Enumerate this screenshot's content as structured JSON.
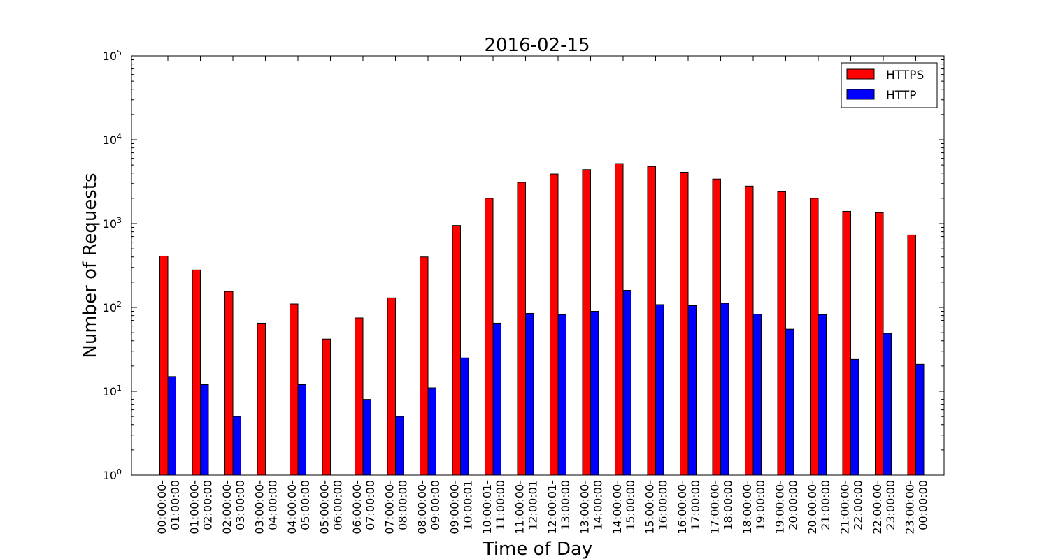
{
  "chart_data": {
    "type": "bar",
    "title": "2016-02-15",
    "xlabel": "Time of Day",
    "ylabel": "Number of Requests",
    "yscale": "log",
    "ylim": [
      1,
      100000
    ],
    "yticks": [
      {
        "value": 1,
        "base": "10",
        "exp": "0"
      },
      {
        "value": 10,
        "base": "10",
        "exp": "1"
      },
      {
        "value": 100,
        "base": "10",
        "exp": "2"
      },
      {
        "value": 1000,
        "base": "10",
        "exp": "3"
      },
      {
        "value": 10000,
        "base": "10",
        "exp": "4"
      },
      {
        "value": 100000,
        "base": "10",
        "exp": "5"
      }
    ],
    "categories": [
      "00:00:00-\n01:00:00",
      "01:00:00-\n02:00:00",
      "02:00:00-\n03:00:00",
      "03:00:00-\n04:00:00",
      "04:00:00-\n05:00:00",
      "05:00:00-\n06:00:00",
      "06:00:00-\n07:00:00",
      "07:00:00-\n08:00:00",
      "08:00:00-\n09:00:00",
      "09:00:00-\n10:00:01",
      "10:00:01-\n11:00:00",
      "11:00:00-\n12:00:01",
      "12:00:01-\n13:00:00",
      "13:00:00-\n14:00:00",
      "14:00:00-\n15:00:00",
      "15:00:00-\n16:00:00",
      "16:00:00-\n17:00:00",
      "17:00:00-\n18:00:00",
      "18:00:00-\n19:00:00",
      "19:00:00-\n20:00:00",
      "20:00:00-\n21:00:00",
      "21:00:00-\n22:00:00",
      "22:00:00-\n23:00:00",
      "23:00:00-\n00:00:00"
    ],
    "series": [
      {
        "name": "HTTPS",
        "color": "#ff0000",
        "values": [
          410,
          280,
          155,
          65,
          110,
          42,
          75,
          130,
          400,
          950,
          2000,
          3100,
          3900,
          4400,
          5200,
          4800,
          4100,
          3400,
          2800,
          2400,
          2000,
          1400,
          1350,
          730
        ]
      },
      {
        "name": "HTTP",
        "color": "#0000ff",
        "values": [
          15,
          12,
          5,
          null,
          12,
          null,
          8,
          5,
          11,
          25,
          65,
          85,
          82,
          90,
          160,
          108,
          105,
          112,
          83,
          55,
          82,
          24,
          49,
          21
        ]
      }
    ],
    "legend": {
      "position": "top-right"
    },
    "grid": false
  }
}
